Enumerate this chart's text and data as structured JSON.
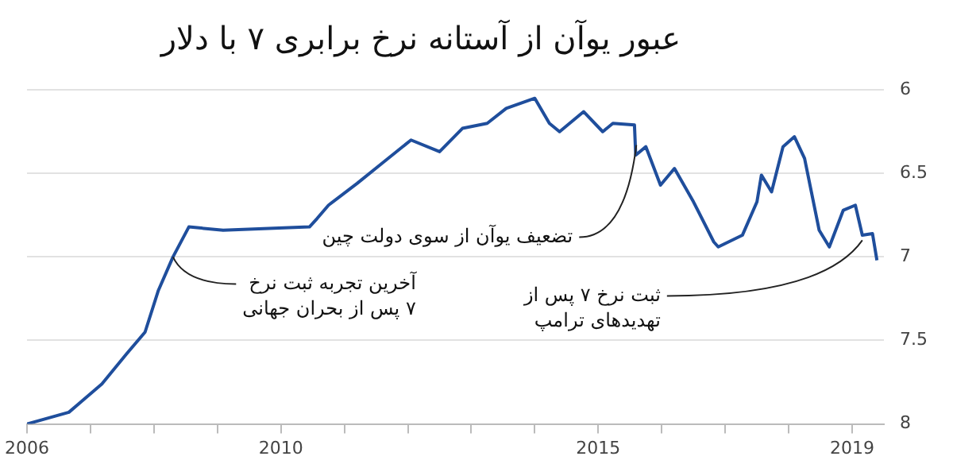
{
  "chart_data": {
    "type": "line",
    "title": "عبور یوآن از آستانه نرخ برابری ۷ با دلار",
    "series": [
      {
        "color": "#1f4e9c",
        "x": [
          2006.0,
          2006.66,
          2007.18,
          2007.57,
          2007.86,
          2008.07,
          2008.3,
          2008.55,
          2009.09,
          2010.45,
          2010.57,
          2010.75,
          2011.2,
          2011.59,
          2012.05,
          2012.5,
          2012.86,
          2013.25,
          2013.55,
          2014.0,
          2014.23,
          2014.39,
          2014.77,
          2015.07,
          2015.23,
          2015.57,
          2015.59,
          2015.75,
          2015.98,
          2016.2,
          2016.5,
          2016.82,
          2016.89,
          2017.27,
          2017.5,
          2017.57,
          2017.73,
          2017.91,
          2018.09,
          2018.25,
          2018.48,
          2018.64,
          2018.86,
          2019.05,
          2019.16,
          2019.32,
          2019.39
        ],
        "values": [
          8.0,
          7.93,
          7.76,
          7.58,
          7.45,
          7.2,
          7.0,
          6.82,
          6.84,
          6.82,
          6.77,
          6.69,
          6.56,
          6.44,
          6.3,
          6.37,
          6.23,
          6.2,
          6.11,
          6.05,
          6.2,
          6.25,
          6.13,
          6.25,
          6.2,
          6.21,
          6.39,
          6.34,
          6.57,
          6.47,
          6.67,
          6.91,
          6.94,
          6.87,
          6.67,
          6.51,
          6.61,
          6.34,
          6.28,
          6.41,
          6.84,
          6.94,
          6.72,
          6.69,
          6.87,
          6.86,
          7.02
        ]
      }
    ],
    "xlim": [
      2006,
      2019.5
    ],
    "xticks": [
      {
        "value": 2006,
        "label": "2006"
      },
      {
        "value": 2007,
        "label": null
      },
      {
        "value": 2008,
        "label": null
      },
      {
        "value": 2009,
        "label": null
      },
      {
        "value": 2010,
        "label": "2010"
      },
      {
        "value": 2011,
        "label": null
      },
      {
        "value": 2012,
        "label": null
      },
      {
        "value": 2013,
        "label": null
      },
      {
        "value": 2014,
        "label": null
      },
      {
        "value": 2015,
        "label": "2015"
      },
      {
        "value": 2016,
        "label": null
      },
      {
        "value": 2017,
        "label": null
      },
      {
        "value": 2018,
        "label": null
      },
      {
        "value": 2019,
        "label": "2019"
      }
    ],
    "ylim": [
      8,
      6
    ],
    "yticks": [
      6,
      6.5,
      7,
      7.5,
      8
    ],
    "grid": "y",
    "marker": "none",
    "line_style": "solid",
    "legend": false,
    "annotations": [
      {
        "text": "تضعیف یوآن از سوی دولت چین",
        "x": 2015.6,
        "y": 6.33
      },
      {
        "text": "آخرین تجربه ثبت نرخ\n۷ پس از بحران جهانی",
        "x": 2008.3,
        "y": 7.0
      },
      {
        "text": "ثبت نرخ ۷ پس از\nتهدیدهای ترامپ",
        "x": 2019.16,
        "y": 6.9
      }
    ]
  }
}
